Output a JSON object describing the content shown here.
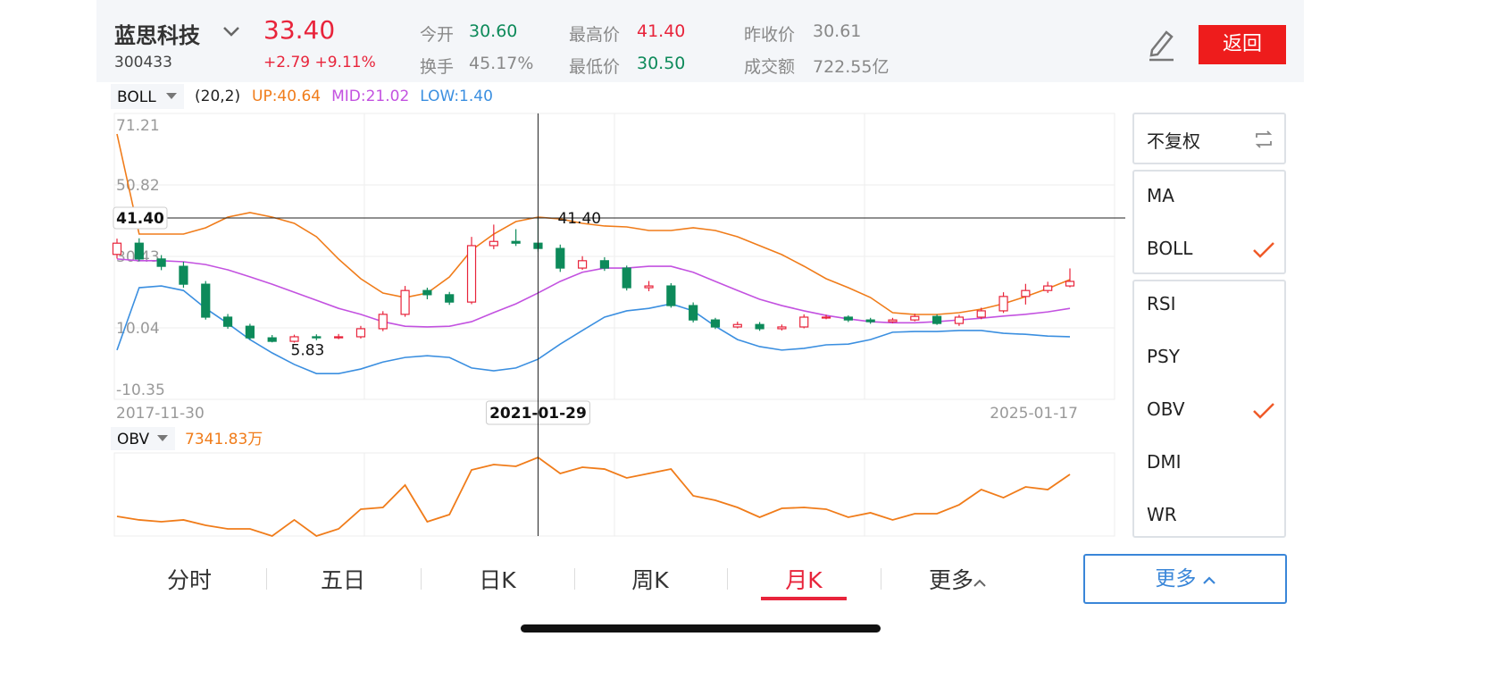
{
  "header": {
    "name": "蓝思科技",
    "code": "300433",
    "price": "33.40",
    "change": "+2.79 +9.11%",
    "stats": [
      {
        "label": "今开",
        "value": "30.60",
        "tone": "down"
      },
      {
        "label": "最高价",
        "value": "41.40",
        "tone": "up"
      },
      {
        "label": "昨收价",
        "value": "30.61",
        "tone": "flat"
      },
      {
        "label": "换手",
        "value": "45.17%",
        "tone": "flat"
      },
      {
        "label": "最低价",
        "value": "30.50",
        "tone": "down"
      },
      {
        "label": "成交额",
        "value": "722.55亿",
        "tone": "flat"
      }
    ],
    "back": "返回"
  },
  "chart_data": [
    {
      "type": "candlestick",
      "indicator": "BOLL",
      "params": "(20,2)",
      "categories": [
        "2017-11-30",
        null,
        null,
        null,
        null,
        null,
        null,
        null,
        null,
        null,
        null,
        null,
        null,
        null,
        null,
        null,
        null,
        null,
        null,
        "2021-01-29",
        null,
        null,
        null,
        null,
        null,
        null,
        null,
        null,
        null,
        null,
        null,
        null,
        null,
        null,
        null,
        null,
        null,
        null,
        null,
        null,
        null,
        null,
        null,
        "2025-01-17"
      ],
      "open": [
        31.0,
        34.2,
        29.7,
        27.6,
        22.5,
        13.1,
        10.5,
        7.2,
        6.2,
        7.5,
        7.2,
        7.5,
        9.8,
        13.9,
        20.7,
        19.5,
        17.4,
        33.5,
        34.7,
        34.2,
        32.7,
        27.1,
        29.2,
        27.1,
        21.5,
        22.0,
        16.4,
        12.3,
        10.3,
        11.0,
        9.8,
        10.3,
        13.1,
        13.1,
        12.3,
        11.8,
        12.3,
        13.3,
        11.3,
        13.1,
        14.9,
        19.0,
        20.7,
        22.0
      ],
      "close": [
        34.2,
        29.7,
        27.6,
        22.5,
        13.1,
        10.5,
        7.2,
        6.2,
        7.5,
        7.2,
        7.5,
        9.8,
        13.9,
        20.7,
        19.5,
        17.4,
        33.5,
        34.7,
        34.2,
        32.7,
        27.1,
        29.2,
        27.1,
        21.5,
        22.0,
        16.4,
        12.3,
        10.3,
        11.0,
        9.8,
        10.3,
        13.1,
        13.1,
        12.3,
        11.8,
        12.3,
        13.3,
        11.3,
        13.1,
        14.9,
        19.0,
        20.7,
        22.0,
        23.3
      ],
      "high": [
        35.5,
        35.6,
        30.8,
        28.9,
        23.4,
        14.0,
        11.2,
        8.0,
        8.1,
        8.2,
        8.3,
        10.6,
        14.8,
        22.0,
        21.5,
        20.3,
        36.0,
        39.5,
        38.2,
        41.4,
        33.8,
        30.5,
        30.2,
        27.8,
        23.4,
        22.8,
        17.3,
        12.9,
        11.8,
        11.7,
        11.0,
        13.9,
        13.8,
        13.6,
        12.9,
        12.9,
        14.1,
        13.9,
        13.8,
        15.8,
        20.2,
        22.6,
        23.2,
        27.0
      ],
      "low": [
        29.8,
        29.0,
        26.5,
        21.5,
        12.4,
        9.8,
        6.6,
        5.9,
        5.83,
        6.5,
        6.8,
        7.0,
        9.1,
        13.2,
        18.2,
        16.6,
        16.8,
        32.5,
        33.4,
        31.8,
        26.0,
        26.6,
        26.3,
        20.7,
        20.5,
        15.8,
        11.6,
        9.7,
        9.9,
        9.2,
        9.3,
        9.9,
        12.5,
        11.7,
        11.2,
        11.4,
        11.9,
        10.9,
        10.6,
        12.5,
        14.3,
        16.7,
        20.0,
        21.6
      ],
      "up_color": "#e8243b",
      "down_color": "#0d8a5a",
      "series": [
        {
          "name": "UP",
          "legend": "UP:40.64",
          "color": "#f07c1a",
          "values": [
            65.35,
            36.8,
            36.8,
            36.8,
            38.59,
            41.64,
            42.92,
            41.64,
            39.86,
            36.04,
            29.66,
            24.06,
            19.98,
            18.7,
            19.98,
            24.57,
            32.21,
            36.8,
            40.37,
            41.64,
            41.13,
            39.86,
            39.1,
            38.84,
            37.82,
            37.82,
            38.59,
            37.82,
            36.04,
            33.49,
            30.94,
            27.63,
            24.06,
            21.51,
            18.7,
            14.37,
            13.86,
            13.86,
            14.37,
            15.39,
            16.92,
            18.96,
            21.25,
            23.8
          ]
        },
        {
          "name": "MID",
          "legend": "MID:21.02",
          "color": "#c352e0",
          "values": [
            29.7,
            29.2,
            29.2,
            28.9,
            28.1,
            26.6,
            24.6,
            22.5,
            20.2,
            17.9,
            15.6,
            13.9,
            11.8,
            10.5,
            10.3,
            10.5,
            11.8,
            14.4,
            16.9,
            20.0,
            23.3,
            25.9,
            27.1,
            27.1,
            27.6,
            27.6,
            25.9,
            23.3,
            20.7,
            18.2,
            16.4,
            14.9,
            13.6,
            12.6,
            11.8,
            11.5,
            11.5,
            11.8,
            12.3,
            12.8,
            13.4,
            13.9,
            14.6,
            15.6
          ]
        },
        {
          "name": "LOW",
          "legend": "LOW:1.40",
          "color": "#3b8fe0",
          "values": [
            3.7,
            21.5,
            22.0,
            20.7,
            15.6,
            11.3,
            6.7,
            2.9,
            -0.4,
            -3.0,
            -3.0,
            -1.7,
            0.3,
            1.6,
            2.1,
            1.6,
            -1.4,
            -2.2,
            -1.4,
            1.1,
            5.4,
            9.3,
            13.1,
            14.9,
            15.6,
            16.9,
            14.9,
            10.5,
            6.7,
            4.7,
            3.7,
            4.2,
            5.2,
            5.4,
            6.7,
            8.8,
            9.0,
            9.0,
            9.3,
            9.3,
            8.5,
            8.2,
            7.7,
            7.5
          ]
        }
      ],
      "annotations": {
        "high": {
          "value": 41.4,
          "label": "41.40"
        },
        "low": {
          "value": 5.83,
          "label": "5.83"
        },
        "crosshair": {
          "value": 41.4,
          "label": "41.40"
        }
      },
      "ylim": [
        -10.35,
        71.21
      ],
      "yticks": [
        71.21,
        50.82,
        30.43,
        10.04,
        -10.35
      ],
      "grid": true
    },
    {
      "type": "line",
      "indicator": "OBV",
      "value_label": "7341.83万",
      "color": "#f07c1a",
      "values": [
        23.7,
        19.4,
        17.2,
        19.4,
        12.9,
        8.6,
        8.6,
        0,
        19.4,
        0,
        8.6,
        32.3,
        34.4,
        61.3,
        17.2,
        25.8,
        79.6,
        86.0,
        83.9,
        94.6,
        75.3,
        82.8,
        80.6,
        69.9,
        75.3,
        80.6,
        48.4,
        43.0,
        34.4,
        22.6,
        33.3,
        34.4,
        32.3,
        22.6,
        28.0,
        19.4,
        26.9,
        26.9,
        37.6,
        55.9,
        46.2,
        59.1,
        55.9,
        74.2
      ],
      "ylim": [
        0,
        100
      ]
    }
  ],
  "menu": {
    "adjust": "不复权",
    "main": [
      {
        "label": "MA",
        "checked": false
      },
      {
        "label": "BOLL",
        "checked": true
      }
    ],
    "sub": [
      {
        "label": "RSI",
        "checked": false
      },
      {
        "label": "PSY",
        "checked": false
      },
      {
        "label": "OBV",
        "checked": true
      },
      {
        "label": "DMI",
        "checked": false
      },
      {
        "label": "WR",
        "checked": false
      }
    ]
  },
  "tabs": {
    "items": [
      "分时",
      "五日",
      "日K",
      "周K",
      "月K",
      "更多"
    ],
    "active": 4
  },
  "more_button": "更多"
}
